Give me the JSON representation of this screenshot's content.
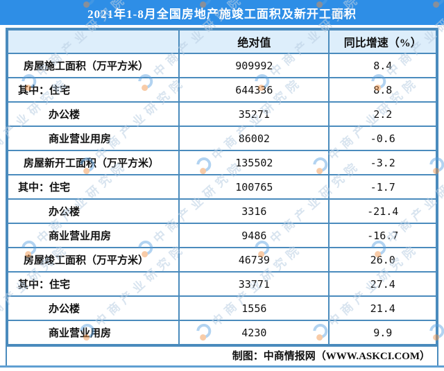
{
  "title": "2021年1-8月全国房地产施竣工面积及新开工面积",
  "chart_data": {
    "type": "table",
    "title": "2021年1-8月全国房地产施竣工面积及新开工面积",
    "columns": [
      "",
      "绝对值",
      "同比增速（%）"
    ],
    "rows": [
      {
        "indicator": "房屋施工面积（万平方米）",
        "level": "section",
        "absolute": 909992,
        "yoy_growth_pct": "8.4"
      },
      {
        "indicator": "其中：住宅",
        "level": "qizhong",
        "absolute": 644336,
        "yoy_growth_pct": "8.8"
      },
      {
        "indicator": "办公楼",
        "level": "sub",
        "absolute": 35271,
        "yoy_growth_pct": "2.2"
      },
      {
        "indicator": "商业营业用房",
        "level": "sub",
        "absolute": 86002,
        "yoy_growth_pct": "-0.6"
      },
      {
        "indicator": "房屋新开工面积（万平方米）",
        "level": "section",
        "absolute": 135502,
        "yoy_growth_pct": "-3.2"
      },
      {
        "indicator": "其中：住宅",
        "level": "qizhong",
        "absolute": 100765,
        "yoy_growth_pct": "-1.7"
      },
      {
        "indicator": "办公楼",
        "level": "sub",
        "absolute": 3316,
        "yoy_growth_pct": "-21.4"
      },
      {
        "indicator": "商业营业用房",
        "level": "sub",
        "absolute": 9486,
        "yoy_growth_pct": "-16.7"
      },
      {
        "indicator": "房屋竣工面积（万平方米）",
        "level": "section",
        "absolute": 46739,
        "yoy_growth_pct": "26.0"
      },
      {
        "indicator": "其中：住宅",
        "level": "qizhong",
        "absolute": 33771,
        "yoy_growth_pct": "27.4"
      },
      {
        "indicator": "办公楼",
        "level": "sub",
        "absolute": 1556,
        "yoy_growth_pct": "21.4"
      },
      {
        "indicator": "商业营业用房",
        "level": "sub",
        "absolute": 4230,
        "yoy_growth_pct": "9.9"
      }
    ]
  },
  "footer": {
    "credit": "制图：中商情报网（WWW.ASKCI.COM）"
  },
  "watermark": {
    "text": "中商产业研究院"
  },
  "colors": {
    "title_bar_blue": "#2e8ee6",
    "table_border_blue": "#4a8bbd",
    "header_row_bg": "#ddeefb",
    "bottom_accent_line": "#5f9fd2",
    "watermark_text": "#b9cee3",
    "watermark_logo_blue": "#5aa2e0",
    "watermark_logo_orange": "#ef9043"
  }
}
